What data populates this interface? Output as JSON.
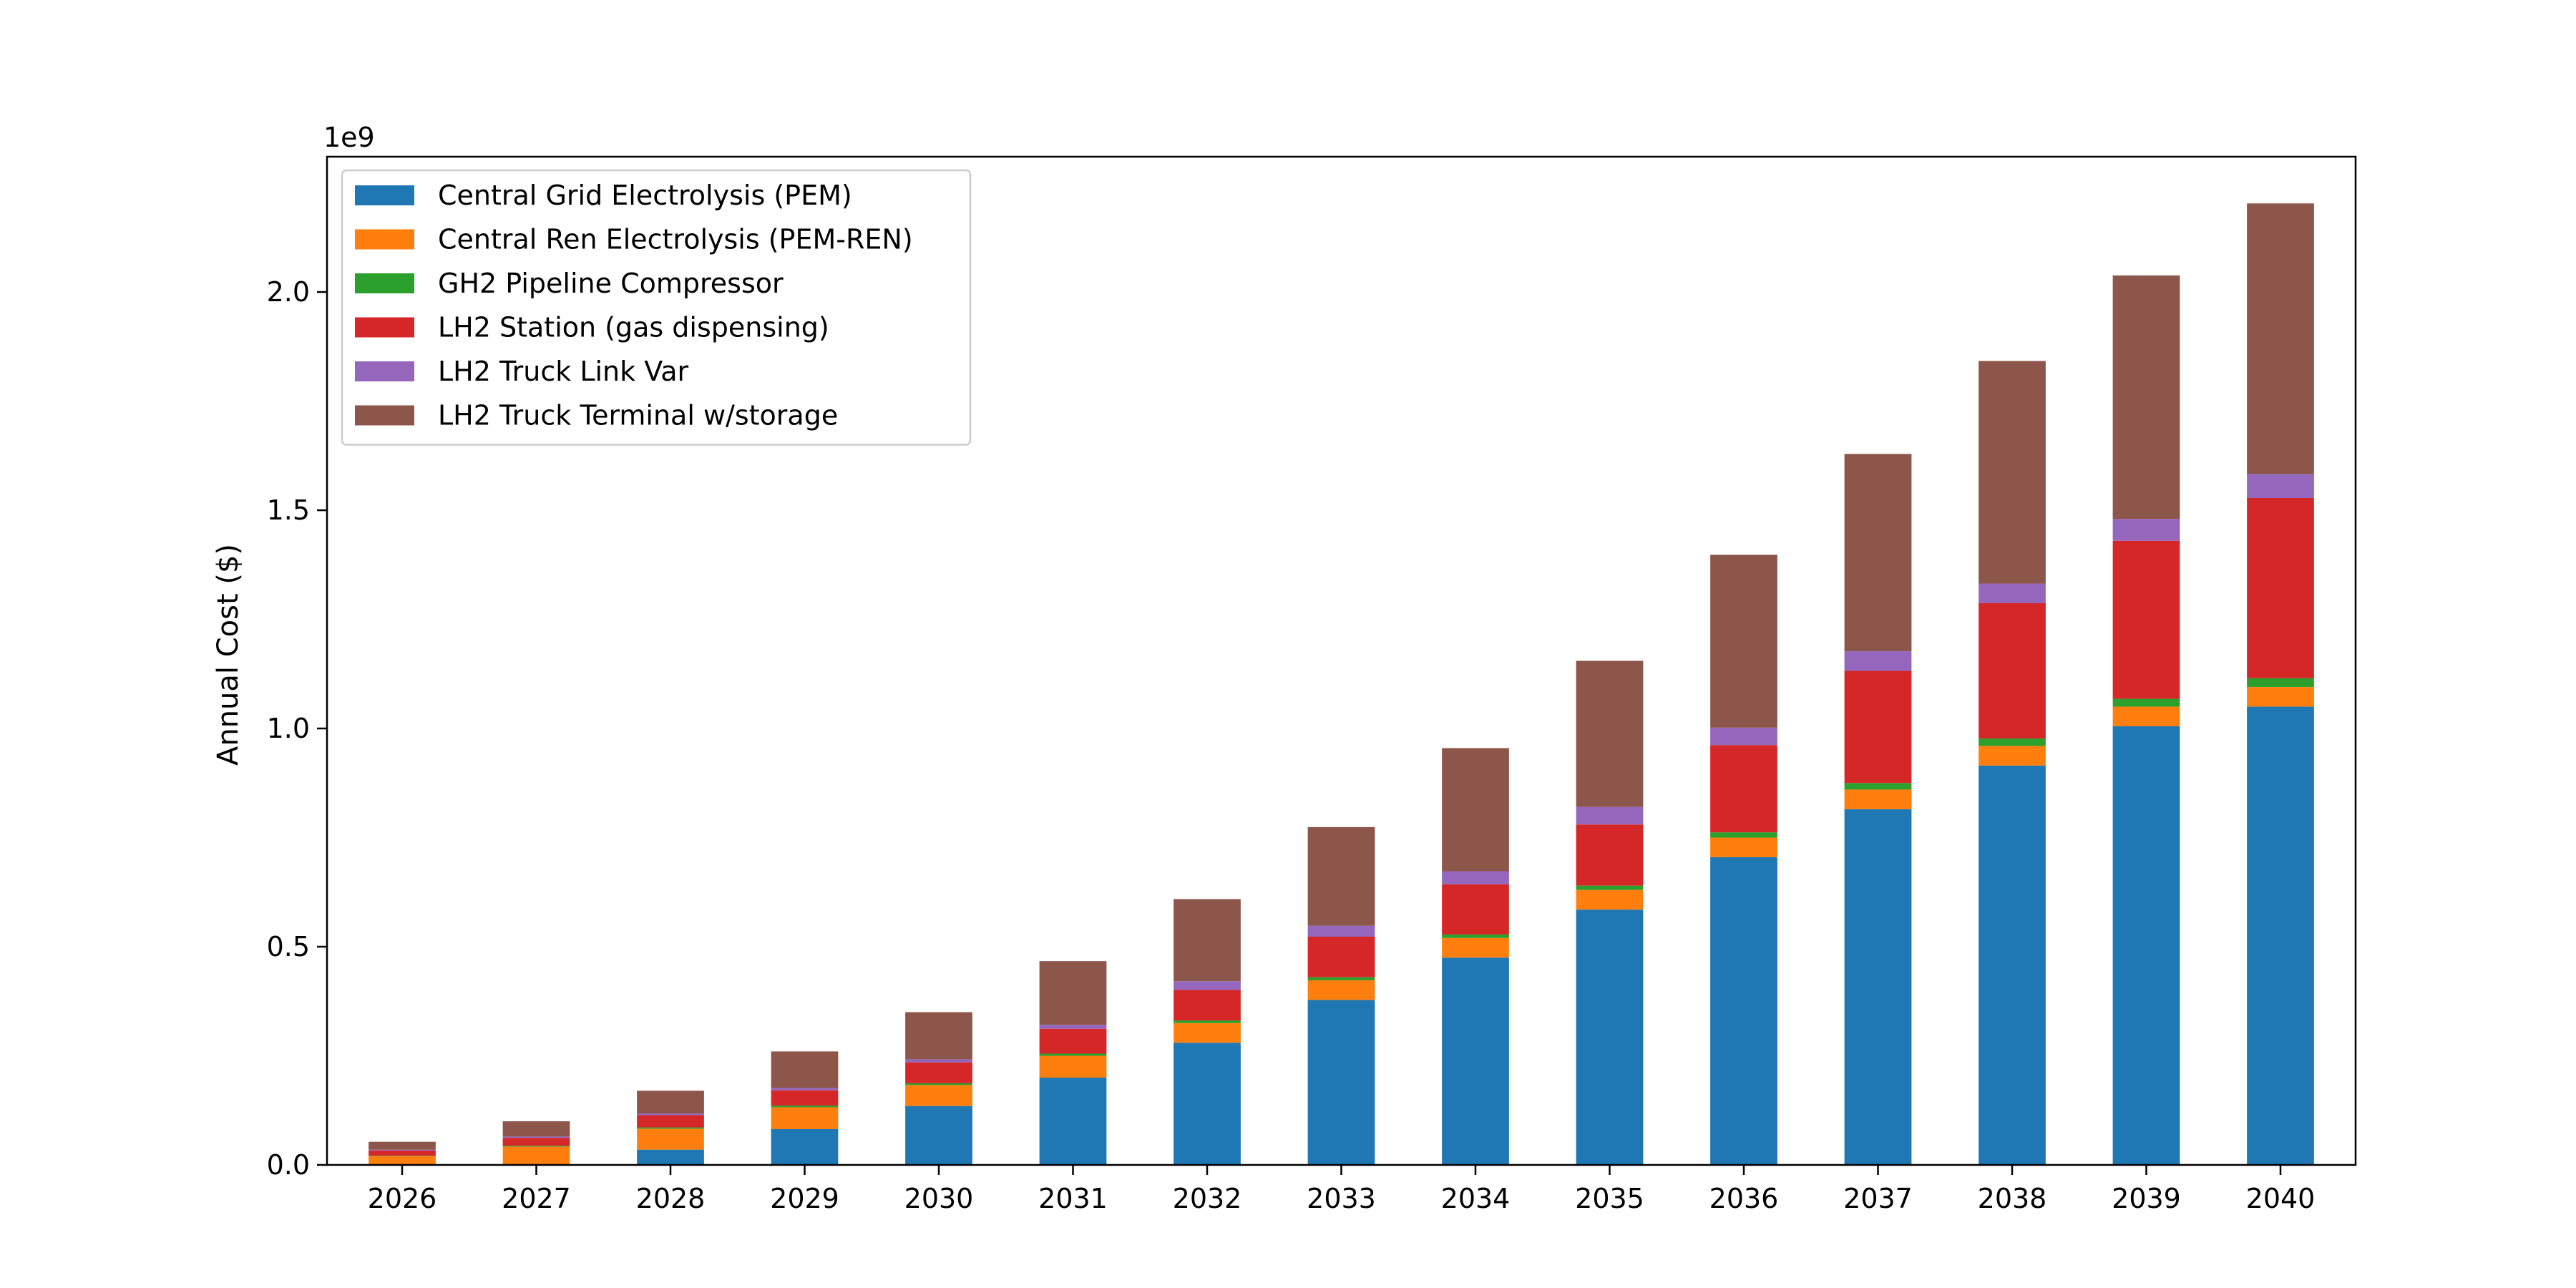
{
  "chart_data": {
    "type": "bar",
    "stacked": true,
    "title": "",
    "xlabel": "",
    "ylabel": "Annual Cost ($)",
    "y_offset_label": "1e9",
    "ylim": [
      0,
      2.31
    ],
    "yticks": [
      0.0,
      0.5,
      1.0,
      1.5,
      2.0
    ],
    "ytick_labels": [
      "0.0",
      "0.5",
      "1.0",
      "1.5",
      "2.0"
    ],
    "grid": false,
    "legend_position": "top-left",
    "categories": [
      "2026",
      "2027",
      "2028",
      "2029",
      "2030",
      "2031",
      "2032",
      "2033",
      "2034",
      "2035",
      "2036",
      "2037",
      "2038",
      "2039",
      "2040"
    ],
    "series": [
      {
        "name": "Central Grid Electrolysis (PEM)",
        "color": "#1f77b4",
        "values": [
          0.0,
          0.0,
          0.035,
          0.082,
          0.135,
          0.2,
          0.28,
          0.378,
          0.475,
          0.585,
          0.705,
          0.815,
          0.915,
          1.005,
          1.05
        ]
      },
      {
        "name": "Central Ren Electrolysis (PEM-REN)",
        "color": "#ff7f0e",
        "values": [
          0.02,
          0.042,
          0.048,
          0.05,
          0.048,
          0.05,
          0.045,
          0.045,
          0.045,
          0.045,
          0.045,
          0.045,
          0.045,
          0.045,
          0.045
        ]
      },
      {
        "name": "GH2 Pipeline Compressor",
        "color": "#2ca02c",
        "values": [
          0.001,
          0.002,
          0.003,
          0.004,
          0.004,
          0.005,
          0.006,
          0.007,
          0.008,
          0.01,
          0.012,
          0.015,
          0.017,
          0.018,
          0.02
        ]
      },
      {
        "name": "LH2 Station (gas dispensing)",
        "color": "#d62728",
        "values": [
          0.012,
          0.018,
          0.028,
          0.035,
          0.048,
          0.057,
          0.07,
          0.093,
          0.115,
          0.14,
          0.2,
          0.257,
          0.31,
          0.362,
          0.413
        ]
      },
      {
        "name": "LH2 Truck Link Var",
        "color": "#9467bd",
        "values": [
          0.002,
          0.003,
          0.004,
          0.006,
          0.007,
          0.009,
          0.02,
          0.025,
          0.03,
          0.04,
          0.04,
          0.045,
          0.045,
          0.05,
          0.055
        ]
      },
      {
        "name": "LH2 Truck Terminal w/storage",
        "color": "#8c564b",
        "values": [
          0.018,
          0.035,
          0.052,
          0.083,
          0.108,
          0.146,
          0.188,
          0.226,
          0.282,
          0.335,
          0.396,
          0.452,
          0.51,
          0.558,
          0.62
        ]
      }
    ]
  }
}
